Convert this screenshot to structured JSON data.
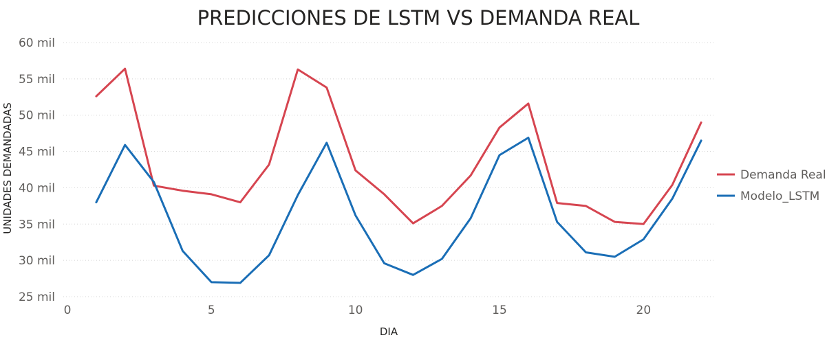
{
  "chart_data": {
    "type": "line",
    "title": "PREDICCIONES DE LSTM VS DEMANDA REAL",
    "xlabel": "DIA",
    "ylabel": "UNIDADES DEMANDADAS",
    "xlim": [
      0,
      22.5
    ],
    "ylim": [
      25000,
      60000
    ],
    "x_ticks": [
      0,
      5,
      10,
      15,
      20
    ],
    "x_tick_labels": [
      "0",
      "5",
      "10",
      "15",
      "20"
    ],
    "y_ticks": [
      25000,
      30000,
      35000,
      40000,
      45000,
      50000,
      55000,
      60000
    ],
    "y_tick_labels": [
      "25 mil",
      "30 mil",
      "35 mil",
      "40 mil",
      "45 mil",
      "50 mil",
      "55 mil",
      "60 mil"
    ],
    "grid": "horizontal",
    "legend_position": "right",
    "x": [
      1,
      2,
      3,
      4,
      5,
      6,
      7,
      8,
      9,
      10,
      11,
      12,
      13,
      14,
      15,
      16,
      17,
      18,
      19,
      20,
      21,
      22
    ],
    "series": [
      {
        "name": "Demanda Real",
        "color": "#d64550",
        "values": [
          52600,
          56400,
          40300,
          39600,
          39100,
          38000,
          43200,
          56300,
          53800,
          42400,
          39100,
          35100,
          37500,
          41700,
          48300,
          51600,
          37900,
          37500,
          35300,
          35000,
          40400,
          49000
        ]
      },
      {
        "name": "Modelo_LSTM",
        "color": "#1a6eb6",
        "values": [
          38000,
          45900,
          40800,
          31300,
          27000,
          26900,
          30700,
          39000,
          46200,
          36200,
          29600,
          28000,
          30200,
          35800,
          44500,
          46900,
          35300,
          31100,
          30500,
          32900,
          38500,
          46500
        ]
      }
    ]
  }
}
